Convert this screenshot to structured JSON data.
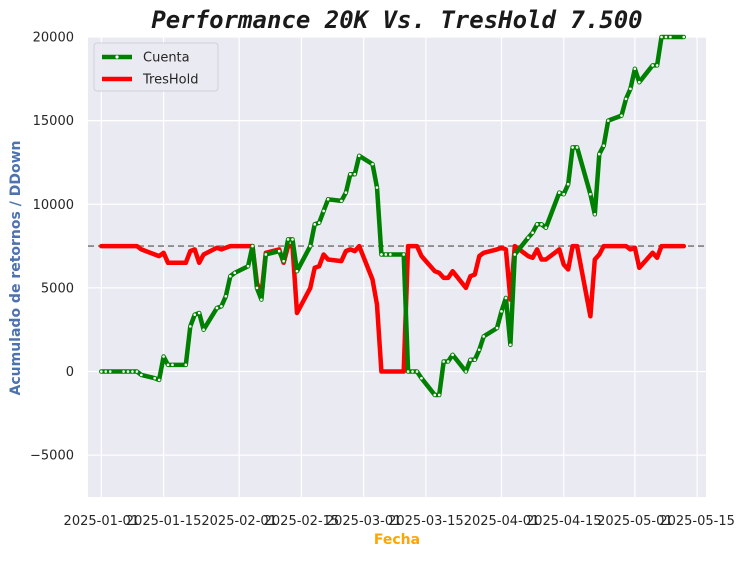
{
  "chart_data": {
    "type": "line",
    "title": "Performance 20K Vs. TresHold 7.500",
    "xlabel": "Fecha",
    "ylabel": "Acumulado de retornos / DDown",
    "ylim": [
      -7500,
      20000
    ],
    "xlim": [
      "2024-12-29",
      "2025-05-17"
    ],
    "yticks": [
      -5000,
      0,
      5000,
      10000,
      15000,
      20000
    ],
    "ytick_labels": [
      "−5000",
      "0",
      "5000",
      "10000",
      "15000",
      "20000"
    ],
    "xticks": [
      "2025-01-01",
      "2025-01-15",
      "2025-02-01",
      "2025-02-15",
      "2025-03-01",
      "2025-03-15",
      "2025-04-01",
      "2025-04-15",
      "2025-05-01",
      "2025-05-15"
    ],
    "xtick_labels": [
      "2025-01-01",
      "2025-01-15",
      "2025-02-01",
      "2025-02-15",
      "2025-03-01",
      "2025-03-15",
      "2025-04-01",
      "2025-04-15",
      "2025-05-01",
      "2025-05-15"
    ],
    "hline": {
      "y": 7500,
      "style": "dashed",
      "color": "#808080"
    },
    "grid": true,
    "legend_position": "top-left",
    "background": "#eaeaf2",
    "series": [
      {
        "name": "Cuenta",
        "color": "#008000",
        "marker": "o",
        "x": [
          "2025-01-01",
          "2025-01-02",
          "2025-01-03",
          "2025-01-06",
          "2025-01-07",
          "2025-01-08",
          "2025-01-09",
          "2025-01-10",
          "2025-01-13",
          "2025-01-14",
          "2025-01-15",
          "2025-01-16",
          "2025-01-17",
          "2025-01-20",
          "2025-01-21",
          "2025-01-22",
          "2025-01-23",
          "2025-01-24",
          "2025-01-27",
          "2025-01-28",
          "2025-01-29",
          "2025-01-30",
          "2025-01-31",
          "2025-02-03",
          "2025-02-04",
          "2025-02-05",
          "2025-02-06",
          "2025-02-07",
          "2025-02-10",
          "2025-02-11",
          "2025-02-12",
          "2025-02-13",
          "2025-02-14",
          "2025-02-17",
          "2025-02-18",
          "2025-02-19",
          "2025-02-20",
          "2025-02-21",
          "2025-02-24",
          "2025-02-25",
          "2025-02-26",
          "2025-02-27",
          "2025-02-28",
          "2025-03-03",
          "2025-03-04",
          "2025-03-05",
          "2025-03-06",
          "2025-03-07",
          "2025-03-10",
          "2025-03-11",
          "2025-03-12",
          "2025-03-13",
          "2025-03-14",
          "2025-03-17",
          "2025-03-18",
          "2025-03-19",
          "2025-03-20",
          "2025-03-21",
          "2025-03-24",
          "2025-03-25",
          "2025-03-26",
          "2025-03-27",
          "2025-03-28",
          "2025-03-31",
          "2025-04-01",
          "2025-04-02",
          "2025-04-03",
          "2025-04-04",
          "2025-04-07",
          "2025-04-08",
          "2025-04-09",
          "2025-04-10",
          "2025-04-11",
          "2025-04-14",
          "2025-04-15",
          "2025-04-16",
          "2025-04-17",
          "2025-04-18",
          "2025-04-21",
          "2025-04-22",
          "2025-04-23",
          "2025-04-24",
          "2025-04-25",
          "2025-04-28",
          "2025-04-29",
          "2025-04-30",
          "2025-05-01",
          "2025-05-02",
          "2025-05-05",
          "2025-05-06",
          "2025-05-07",
          "2025-05-08",
          "2025-05-09",
          "2025-05-12"
        ],
        "values": [
          0,
          0,
          0,
          0,
          0,
          0,
          0,
          -200,
          -400,
          -500,
          900,
          400,
          400,
          400,
          2700,
          3400,
          3500,
          2500,
          3800,
          3900,
          4500,
          5700,
          5900,
          6300,
          7500,
          5000,
          4300,
          7000,
          7200,
          6600,
          7900,
          7900,
          6000,
          7500,
          8800,
          8900,
          9600,
          10300,
          10200,
          10700,
          11800,
          11800,
          12900,
          12400,
          11000,
          7000,
          7000,
          7000,
          7000,
          0,
          0,
          0,
          -400,
          -1400,
          -1400,
          600,
          600,
          1000,
          0,
          700,
          700,
          1300,
          2100,
          2600,
          3600,
          4400,
          1600,
          7000,
          8000,
          8300,
          8800,
          8800,
          8600,
          10700,
          10600,
          11200,
          13400,
          13400,
          10600,
          9400,
          13000,
          13500,
          15000,
          15300,
          16300,
          16900,
          18100,
          17300,
          18300,
          18300,
          20000,
          20000,
          20000,
          20000
        ]
      },
      {
        "name": "TresHold",
        "color": "#ff0000",
        "marker": "",
        "x": [
          "2025-01-01",
          "2025-01-02",
          "2025-01-03",
          "2025-01-06",
          "2025-01-07",
          "2025-01-08",
          "2025-01-09",
          "2025-01-10",
          "2025-01-13",
          "2025-01-14",
          "2025-01-15",
          "2025-01-16",
          "2025-01-17",
          "2025-01-20",
          "2025-01-21",
          "2025-01-22",
          "2025-01-23",
          "2025-01-24",
          "2025-01-27",
          "2025-01-28",
          "2025-01-29",
          "2025-01-30",
          "2025-01-31",
          "2025-02-03",
          "2025-02-04",
          "2025-02-05",
          "2025-02-06",
          "2025-02-07",
          "2025-02-10",
          "2025-02-11",
          "2025-02-12",
          "2025-02-13",
          "2025-02-14",
          "2025-02-17",
          "2025-02-18",
          "2025-02-19",
          "2025-02-20",
          "2025-02-21",
          "2025-02-24",
          "2025-02-25",
          "2025-02-26",
          "2025-02-27",
          "2025-02-28",
          "2025-03-03",
          "2025-03-04",
          "2025-03-05",
          "2025-03-06",
          "2025-03-07",
          "2025-03-10",
          "2025-03-11",
          "2025-03-12",
          "2025-03-13",
          "2025-03-14",
          "2025-03-17",
          "2025-03-18",
          "2025-03-19",
          "2025-03-20",
          "2025-03-21",
          "2025-03-24",
          "2025-03-25",
          "2025-03-26",
          "2025-03-27",
          "2025-03-28",
          "2025-03-31",
          "2025-04-01",
          "2025-04-02",
          "2025-04-03",
          "2025-04-04",
          "2025-04-07",
          "2025-04-08",
          "2025-04-09",
          "2025-04-10",
          "2025-04-11",
          "2025-04-14",
          "2025-04-15",
          "2025-04-16",
          "2025-04-17",
          "2025-04-18",
          "2025-04-21",
          "2025-04-22",
          "2025-04-23",
          "2025-04-24",
          "2025-04-25",
          "2025-04-28",
          "2025-04-29",
          "2025-04-30",
          "2025-05-01",
          "2025-05-02",
          "2025-05-05",
          "2025-05-06",
          "2025-05-07",
          "2025-05-08",
          "2025-05-09",
          "2025-05-12"
        ],
        "values": [
          7500,
          7500,
          7500,
          7500,
          7500,
          7500,
          7500,
          7300,
          7000,
          6900,
          7100,
          6500,
          6500,
          6500,
          7200,
          7300,
          6500,
          7000,
          7400,
          7300,
          7400,
          7500,
          7500,
          7500,
          7500,
          5300,
          4600,
          7100,
          7300,
          6500,
          7500,
          7500,
          3500,
          5000,
          6200,
          6300,
          7000,
          6700,
          6600,
          7200,
          7300,
          7200,
          7500,
          5500,
          4000,
          0,
          0,
          0,
          0,
          7500,
          7500,
          7500,
          6900,
          6000,
          5900,
          5600,
          5600,
          6000,
          5000,
          5700,
          5800,
          6900,
          7100,
          7300,
          7400,
          7300,
          4300,
          7500,
          6900,
          6800,
          7300,
          6700,
          6700,
          7300,
          6400,
          6100,
          7500,
          7500,
          3300,
          6700,
          7000,
          7500,
          7500,
          7500,
          7500,
          7300,
          7400,
          6200,
          7100,
          6800,
          7500,
          7500,
          7500,
          7500
        ]
      }
    ]
  }
}
